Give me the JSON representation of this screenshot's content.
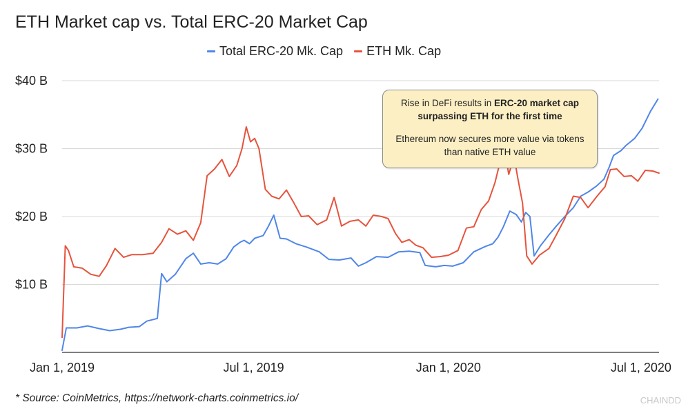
{
  "chart_data": {
    "type": "line",
    "title": "ETH Market cap vs. Total ERC-20 Market Cap",
    "xlabel": "",
    "ylabel": "",
    "x_tick_labels": [
      "Jan 1, 2019",
      "Jul 1, 2019",
      "Jan 1, 2020",
      "Jul 1, 2020"
    ],
    "y_tick_labels": [
      "$10 B",
      "$20 B",
      "$30 B",
      "$40 B"
    ],
    "y_ticks": [
      10,
      20,
      30,
      40
    ],
    "ylim": [
      0,
      40
    ],
    "xlim": [
      "2019-01-01",
      "2020-07-18"
    ],
    "grid": "horizontal",
    "legend_position": "top",
    "series": [
      {
        "name": "Total ERC-20 Mk. Cap",
        "color": "#4f86e8",
        "points": [
          [
            "2019-01-01",
            0.3
          ],
          [
            "2019-01-05",
            3.6
          ],
          [
            "2019-01-15",
            3.6
          ],
          [
            "2019-01-25",
            3.9
          ],
          [
            "2019-02-05",
            3.5
          ],
          [
            "2019-02-15",
            3.2
          ],
          [
            "2019-02-25",
            3.4
          ],
          [
            "2019-03-05",
            3.7
          ],
          [
            "2019-03-15",
            3.8
          ],
          [
            "2019-03-22",
            4.6
          ],
          [
            "2019-04-01",
            5.0
          ],
          [
            "2019-04-05",
            11.6
          ],
          [
            "2019-04-10",
            10.4
          ],
          [
            "2019-04-18",
            11.5
          ],
          [
            "2019-04-28",
            13.8
          ],
          [
            "2019-05-05",
            14.6
          ],
          [
            "2019-05-12",
            13.0
          ],
          [
            "2019-05-20",
            13.2
          ],
          [
            "2019-05-28",
            13.0
          ],
          [
            "2019-06-05",
            13.8
          ],
          [
            "2019-06-12",
            15.5
          ],
          [
            "2019-06-18",
            16.2
          ],
          [
            "2019-06-22",
            16.5
          ],
          [
            "2019-06-27",
            16.0
          ],
          [
            "2019-07-02",
            16.8
          ],
          [
            "2019-07-10",
            17.2
          ],
          [
            "2019-07-15",
            18.6
          ],
          [
            "2019-07-20",
            20.2
          ],
          [
            "2019-07-23",
            18.5
          ],
          [
            "2019-07-26",
            16.8
          ],
          [
            "2019-08-01",
            16.7
          ],
          [
            "2019-08-10",
            16.0
          ],
          [
            "2019-08-20",
            15.5
          ],
          [
            "2019-09-01",
            14.8
          ],
          [
            "2019-09-10",
            13.7
          ],
          [
            "2019-09-20",
            13.6
          ],
          [
            "2019-10-01",
            13.9
          ],
          [
            "2019-10-08",
            12.7
          ],
          [
            "2019-10-15",
            13.2
          ],
          [
            "2019-10-25",
            14.1
          ],
          [
            "2019-11-05",
            14.0
          ],
          [
            "2019-11-15",
            14.8
          ],
          [
            "2019-11-25",
            14.9
          ],
          [
            "2019-12-05",
            14.7
          ],
          [
            "2019-12-10",
            12.8
          ],
          [
            "2019-12-20",
            12.6
          ],
          [
            "2019-12-28",
            12.8
          ],
          [
            "2020-01-05",
            12.7
          ],
          [
            "2020-01-15",
            13.2
          ],
          [
            "2020-01-25",
            14.8
          ],
          [
            "2020-02-05",
            15.6
          ],
          [
            "2020-02-12",
            16.0
          ],
          [
            "2020-02-17",
            17.0
          ],
          [
            "2020-02-22",
            18.5
          ],
          [
            "2020-02-28",
            20.8
          ],
          [
            "2020-03-05",
            20.3
          ],
          [
            "2020-03-10",
            19.2
          ],
          [
            "2020-03-14",
            20.6
          ],
          [
            "2020-03-18",
            20.0
          ],
          [
            "2020-03-22",
            14.2
          ],
          [
            "2020-03-28",
            15.7
          ],
          [
            "2020-04-05",
            17.3
          ],
          [
            "2020-04-12",
            18.6
          ],
          [
            "2020-04-20",
            20.0
          ],
          [
            "2020-04-28",
            21.3
          ],
          [
            "2020-05-05",
            23.0
          ],
          [
            "2020-05-12",
            23.6
          ],
          [
            "2020-05-20",
            24.5
          ],
          [
            "2020-05-27",
            25.5
          ],
          [
            "2020-06-01",
            27.3
          ],
          [
            "2020-06-05",
            29.0
          ],
          [
            "2020-06-12",
            29.7
          ],
          [
            "2020-06-17",
            30.5
          ],
          [
            "2020-06-25",
            31.5
          ],
          [
            "2020-07-02",
            33.0
          ],
          [
            "2020-07-10",
            35.5
          ],
          [
            "2020-07-17",
            37.3
          ]
        ]
      },
      {
        "name": "ETH Mk. Cap",
        "color": "#e6533c",
        "points": [
          [
            "2019-01-01",
            2.2
          ],
          [
            "2019-01-04",
            15.7
          ],
          [
            "2019-01-07",
            15.0
          ],
          [
            "2019-01-12",
            12.6
          ],
          [
            "2019-01-20",
            12.4
          ],
          [
            "2019-01-28",
            11.5
          ],
          [
            "2019-02-05",
            11.2
          ],
          [
            "2019-02-12",
            12.8
          ],
          [
            "2019-02-20",
            15.3
          ],
          [
            "2019-02-28",
            14.0
          ],
          [
            "2019-03-08",
            14.4
          ],
          [
            "2019-03-18",
            14.4
          ],
          [
            "2019-03-28",
            14.6
          ],
          [
            "2019-04-05",
            16.2
          ],
          [
            "2019-04-12",
            18.2
          ],
          [
            "2019-04-20",
            17.4
          ],
          [
            "2019-04-28",
            17.9
          ],
          [
            "2019-05-05",
            16.5
          ],
          [
            "2019-05-12",
            19.1
          ],
          [
            "2019-05-18",
            26.0
          ],
          [
            "2019-05-25",
            27.0
          ],
          [
            "2019-06-01",
            28.4
          ],
          [
            "2019-06-08",
            25.9
          ],
          [
            "2019-06-15",
            27.5
          ],
          [
            "2019-06-20",
            30.0
          ],
          [
            "2019-06-24",
            33.2
          ],
          [
            "2019-06-28",
            31.0
          ],
          [
            "2019-07-02",
            31.5
          ],
          [
            "2019-07-06",
            30.0
          ],
          [
            "2019-07-12",
            24.0
          ],
          [
            "2019-07-18",
            23.0
          ],
          [
            "2019-07-25",
            22.6
          ],
          [
            "2019-08-01",
            23.9
          ],
          [
            "2019-08-08",
            22.0
          ],
          [
            "2019-08-15",
            20.0
          ],
          [
            "2019-08-22",
            20.1
          ],
          [
            "2019-08-30",
            18.8
          ],
          [
            "2019-09-08",
            19.5
          ],
          [
            "2019-09-15",
            22.8
          ],
          [
            "2019-09-22",
            18.6
          ],
          [
            "2019-09-30",
            19.3
          ],
          [
            "2019-10-08",
            19.5
          ],
          [
            "2019-10-15",
            18.6
          ],
          [
            "2019-10-22",
            20.2
          ],
          [
            "2019-10-30",
            20.0
          ],
          [
            "2019-11-05",
            19.7
          ],
          [
            "2019-11-12",
            17.5
          ],
          [
            "2019-11-18",
            16.2
          ],
          [
            "2019-11-25",
            16.6
          ],
          [
            "2019-12-01",
            15.8
          ],
          [
            "2019-12-08",
            15.4
          ],
          [
            "2019-12-16",
            14.0
          ],
          [
            "2019-12-24",
            14.1
          ],
          [
            "2020-01-01",
            14.3
          ],
          [
            "2020-01-10",
            15.0
          ],
          [
            "2020-01-18",
            18.3
          ],
          [
            "2020-01-25",
            18.5
          ],
          [
            "2020-02-01",
            21.0
          ],
          [
            "2020-02-08",
            22.3
          ],
          [
            "2020-02-14",
            25.0
          ],
          [
            "2020-02-18",
            27.5
          ],
          [
            "2020-02-22",
            31.0
          ],
          [
            "2020-02-27",
            26.2
          ],
          [
            "2020-03-03",
            28.8
          ],
          [
            "2020-03-07",
            25.3
          ],
          [
            "2020-03-11",
            22.0
          ],
          [
            "2020-03-15",
            14.2
          ],
          [
            "2020-03-20",
            13.0
          ],
          [
            "2020-03-27",
            14.3
          ],
          [
            "2020-04-05",
            15.3
          ],
          [
            "2020-04-12",
            17.3
          ],
          [
            "2020-04-20",
            19.7
          ],
          [
            "2020-04-28",
            23.0
          ],
          [
            "2020-05-05",
            22.8
          ],
          [
            "2020-05-12",
            21.3
          ],
          [
            "2020-05-20",
            22.9
          ],
          [
            "2020-05-28",
            24.4
          ],
          [
            "2020-06-02",
            26.9
          ],
          [
            "2020-06-08",
            27.0
          ],
          [
            "2020-06-15",
            25.9
          ],
          [
            "2020-06-22",
            26.0
          ],
          [
            "2020-06-28",
            25.2
          ],
          [
            "2020-07-05",
            26.8
          ],
          [
            "2020-07-12",
            26.7
          ],
          [
            "2020-07-18",
            26.4
          ]
        ]
      }
    ],
    "annotation": {
      "text_plain_1": "Rise in DeFi results in ",
      "text_bold": "ERC-20 market cap surpassing ETH for the first time",
      "text_2": "Ethereum now secures more value via tokens than native ETH value",
      "background_color": "#fcefc4"
    }
  },
  "source": "* Source: CoinMetrics, https://network-charts.coinmetrics.io/",
  "watermark": "CHAINDD"
}
